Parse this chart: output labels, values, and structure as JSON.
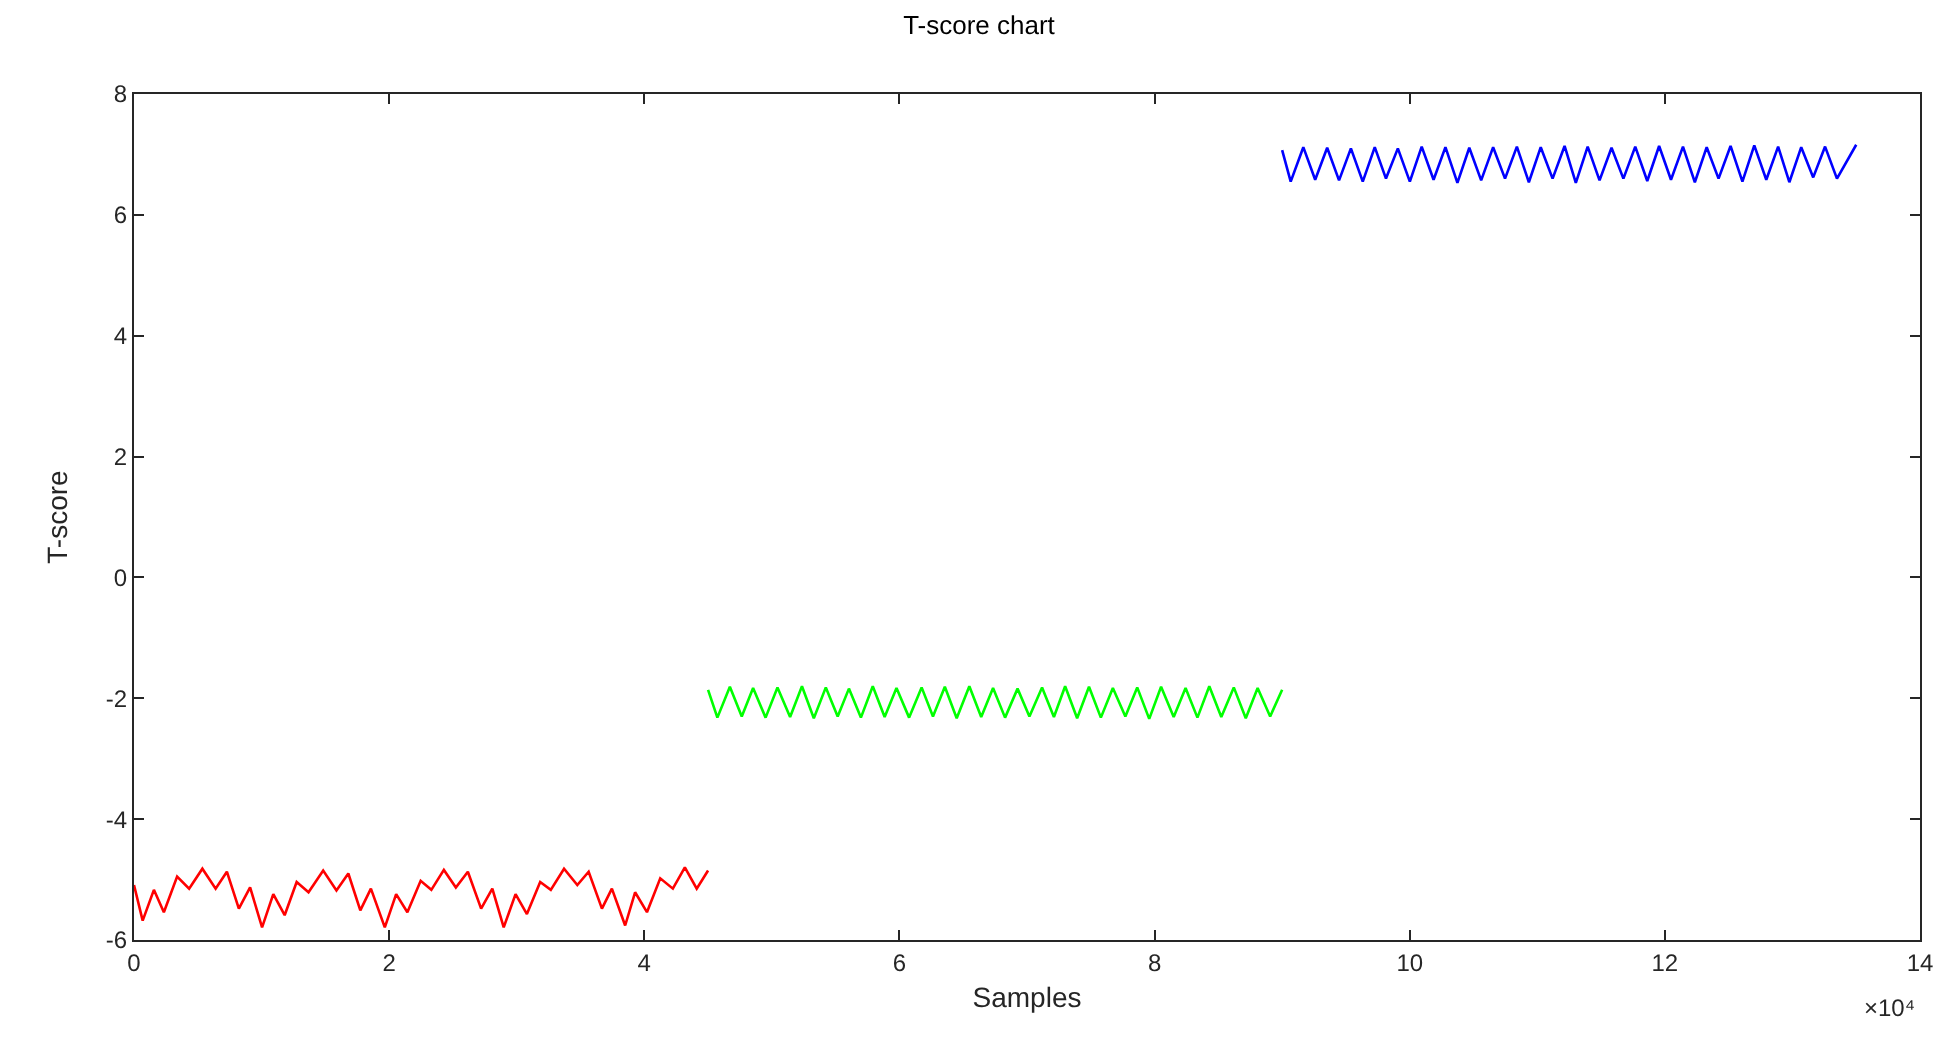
{
  "chart_data": {
    "type": "line",
    "title": "T-score chart",
    "xlabel": "Samples",
    "ylabel": "T-score",
    "xlim": [
      0,
      14
    ],
    "ylim": [
      -6,
      8
    ],
    "xticks": [
      0,
      2,
      4,
      6,
      8,
      10,
      12,
      14
    ],
    "yticks": [
      -6,
      -4,
      -2,
      0,
      2,
      4,
      6,
      8
    ],
    "annotations": [
      "×10⁴"
    ],
    "marker": "none",
    "line_style": "solid",
    "series": [
      {
        "color": "#ff0000",
        "x": [
          0,
          0.068,
          0.156,
          0.234,
          0.338,
          0.432,
          0.536,
          0.64,
          0.728,
          0.822,
          0.91,
          1.004,
          1.092,
          1.181,
          1.275,
          1.368,
          1.483,
          1.587,
          1.68,
          1.774,
          1.857,
          1.966,
          2.055,
          2.143,
          2.247,
          2.331,
          2.429,
          2.523,
          2.617,
          2.721,
          2.809,
          2.898,
          2.991,
          3.08,
          3.184,
          3.267,
          3.371,
          3.475,
          3.564,
          3.668,
          3.746,
          3.85,
          3.928,
          4.021,
          4.125,
          4.224,
          4.318,
          4.411,
          4.5
        ],
        "values": [
          -5.09,
          -5.68,
          -5.17,
          -5.54,
          -4.95,
          -5.15,
          -4.82,
          -5.15,
          -4.87,
          -5.48,
          -5.13,
          -5.79,
          -5.24,
          -5.59,
          -5.04,
          -5.21,
          -4.85,
          -5.18,
          -4.9,
          -5.51,
          -5.15,
          -5.79,
          -5.24,
          -5.54,
          -5.02,
          -5.17,
          -4.84,
          -5.13,
          -4.87,
          -5.48,
          -5.15,
          -5.79,
          -5.24,
          -5.57,
          -5.04,
          -5.17,
          -4.82,
          -5.09,
          -4.87,
          -5.48,
          -5.15,
          -5.76,
          -5.21,
          -5.54,
          -4.98,
          -5.15,
          -4.8,
          -5.15,
          -4.85
        ]
      },
      {
        "color": "#00ff00",
        "x": [
          4.5,
          4.573,
          4.671,
          4.764,
          4.853,
          4.951,
          5.044,
          5.143,
          5.236,
          5.329,
          5.423,
          5.516,
          5.604,
          5.698,
          5.791,
          5.884,
          5.977,
          6.076,
          6.174,
          6.263,
          6.356,
          6.449,
          6.548,
          6.641,
          6.734,
          6.828,
          6.926,
          7.019,
          7.118,
          7.211,
          7.299,
          7.393,
          7.486,
          7.579,
          7.673,
          7.771,
          7.864,
          7.958,
          8.051,
          8.15,
          8.243,
          8.336,
          8.429,
          8.523,
          8.621,
          8.715,
          8.808,
          8.906,
          9
        ],
        "values": [
          -1.86,
          -2.32,
          -1.81,
          -2.3,
          -1.83,
          -2.32,
          -1.82,
          -2.31,
          -1.8,
          -2.33,
          -1.82,
          -2.3,
          -1.84,
          -2.32,
          -1.8,
          -2.31,
          -1.83,
          -2.32,
          -1.82,
          -2.3,
          -1.81,
          -2.33,
          -1.8,
          -2.31,
          -1.83,
          -2.32,
          -1.84,
          -2.3,
          -1.82,
          -2.31,
          -1.8,
          -2.33,
          -1.81,
          -2.32,
          -1.83,
          -2.3,
          -1.82,
          -2.34,
          -1.81,
          -2.31,
          -1.83,
          -2.32,
          -1.8,
          -2.31,
          -1.82,
          -2.33,
          -1.83,
          -2.3,
          -1.86
        ]
      },
      {
        "color": "#0000ff",
        "x": [
          9,
          9.067,
          9.166,
          9.259,
          9.353,
          9.446,
          9.539,
          9.632,
          9.726,
          9.814,
          9.907,
          10.001,
          10.094,
          10.187,
          10.28,
          10.374,
          10.467,
          10.56,
          10.654,
          10.747,
          10.84,
          10.934,
          11.027,
          11.12,
          11.214,
          11.302,
          11.395,
          11.488,
          11.582,
          11.675,
          11.768,
          11.862,
          11.955,
          12.048,
          12.142,
          12.235,
          12.328,
          12.421,
          12.515,
          12.608,
          12.701,
          12.795,
          12.888,
          12.976,
          13.069,
          13.163,
          13.256,
          13.349,
          13.5
        ],
        "values": [
          7.07,
          6.55,
          7.12,
          6.58,
          7.11,
          6.57,
          7.1,
          6.55,
          7.12,
          6.6,
          7.1,
          6.55,
          7.13,
          6.58,
          7.12,
          6.53,
          7.11,
          6.57,
          7.12,
          6.6,
          7.13,
          6.54,
          7.12,
          6.6,
          7.14,
          6.53,
          7.13,
          6.57,
          7.11,
          6.6,
          7.13,
          6.56,
          7.14,
          6.58,
          7.13,
          6.54,
          7.12,
          6.6,
          7.14,
          6.55,
          7.15,
          6.58,
          7.13,
          6.54,
          7.12,
          6.62,
          7.13,
          6.6,
          7.16
        ]
      }
    ]
  }
}
